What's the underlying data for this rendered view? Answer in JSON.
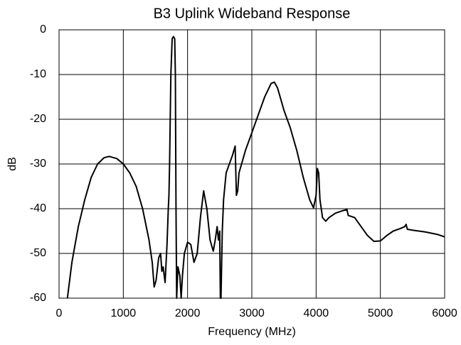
{
  "chart_data": {
    "type": "line",
    "title": "B3 Uplink Wideband Response",
    "x_label": "Frequency (MHz)",
    "y_label": "dB",
    "xlim": [
      0,
      6000
    ],
    "xticks": [
      0,
      1000,
      2000,
      3000,
      4000,
      5000,
      6000
    ],
    "ylim": [
      -60,
      0
    ],
    "yticks": [
      0,
      -10,
      -20,
      -30,
      -40,
      -50,
      -60
    ],
    "grid": true,
    "color": "#000000",
    "x": [
      130,
      200,
      300,
      400,
      500,
      600,
      700,
      780,
      900,
      1000,
      1100,
      1200,
      1300,
      1400,
      1450,
      1480,
      1510,
      1550,
      1580,
      1600,
      1620,
      1650,
      1680,
      1700,
      1710,
      1720,
      1740,
      1760,
      1780,
      1800,
      1810,
      1820,
      1830,
      1850,
      1880,
      1900,
      1920,
      1950,
      2000,
      2050,
      2100,
      2150,
      2200,
      2250,
      2300,
      2350,
      2400,
      2430,
      2460,
      2480,
      2500,
      2510,
      2520,
      2540,
      2560,
      2600,
      2650,
      2700,
      2740,
      2760,
      2780,
      2800,
      2900,
      3000,
      3100,
      3200,
      3300,
      3350,
      3400,
      3500,
      3600,
      3700,
      3800,
      3900,
      3960,
      4000,
      4020,
      4040,
      4060,
      4100,
      4150,
      4200,
      4300,
      4400,
      4480,
      4500,
      4600,
      4700,
      4800,
      4900,
      5000,
      5100,
      5200,
      5300,
      5380,
      5400,
      5420,
      5500,
      5700,
      5900,
      6000
    ],
    "values": [
      -60,
      -52,
      -44,
      -38,
      -33,
      -30,
      -28.6,
      -28.3,
      -28.8,
      -30,
      -32,
      -35,
      -40,
      -47,
      -52,
      -57.5,
      -56,
      -51,
      -50,
      -54,
      -53,
      -56.5,
      -48,
      -40,
      -37,
      -30,
      -10,
      -2,
      -1.5,
      -2,
      -10,
      -40,
      -60,
      -53,
      -55,
      -60,
      -55,
      -50,
      -47.5,
      -48,
      -52,
      -50,
      -42,
      -36,
      -40,
      -47,
      -49.5,
      -47,
      -44,
      -47,
      -45,
      -60,
      -60,
      -45,
      -38,
      -32,
      -30,
      -28,
      -26,
      -37,
      -36,
      -32,
      -27,
      -23,
      -19,
      -15,
      -12,
      -11.7,
      -13,
      -18,
      -22,
      -27,
      -33,
      -38,
      -39.8,
      -37,
      -31,
      -32,
      -38,
      -42,
      -42.8,
      -42,
      -41,
      -40.5,
      -40.2,
      -41.5,
      -42,
      -44,
      -46,
      -47.3,
      -47.2,
      -46,
      -45,
      -44.5,
      -44,
      -43.5,
      -44.6,
      -44.8,
      -45.2,
      -45.8,
      -46.3
    ]
  }
}
